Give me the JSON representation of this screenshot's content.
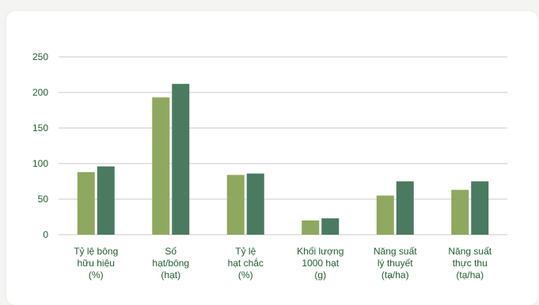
{
  "chart_data": {
    "type": "bar",
    "title": "",
    "xlabel": "",
    "ylabel": "",
    "ylim": [
      0,
      250
    ],
    "yticks": [
      "250",
      "200",
      "150",
      "100",
      "50",
      "0"
    ],
    "grid": true,
    "categories": [
      [
        "Tỷ lệ bông",
        "hữu hiệu",
        "(%)"
      ],
      [
        "Số",
        "hạt/bông",
        "(hạt)"
      ],
      [
        "Tỷ lệ",
        "hạt chắc",
        "(%)"
      ],
      [
        "Khối lượng",
        "1000 hạt",
        "(g)"
      ],
      [
        "Năng suất",
        "lý thuyết",
        "(tạ/ha)"
      ],
      [
        "Năng suất",
        "thực thu",
        "(tạ/ha)"
      ]
    ],
    "series": [
      {
        "values": [
          88,
          193,
          84,
          20,
          55,
          63
        ],
        "color": "#8ea85f"
      },
      {
        "values": [
          96,
          212,
          86,
          23,
          75,
          75
        ],
        "color": "#4a7a5f"
      }
    ],
    "gridline_color": "#c8c8c8",
    "text_color": "#1f5e2e"
  }
}
